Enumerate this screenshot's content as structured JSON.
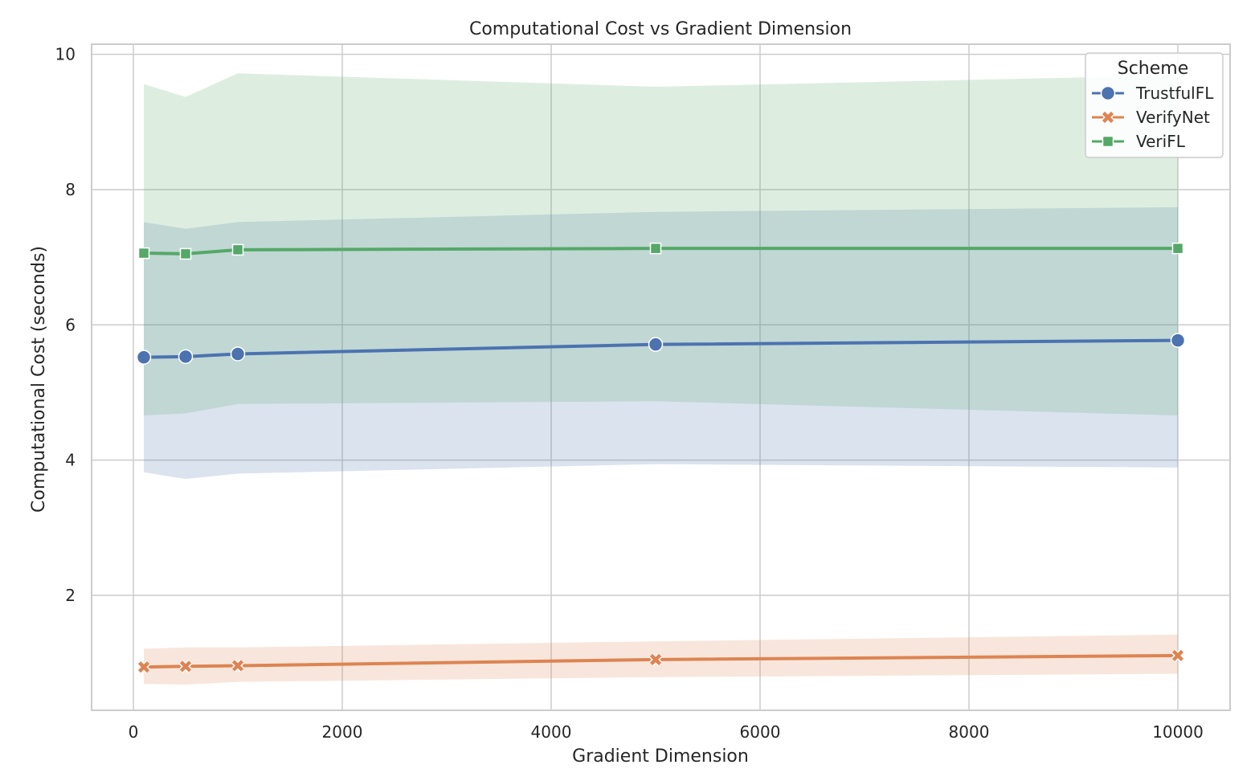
{
  "chart_data": {
    "type": "line",
    "title": "Computational Cost vs Gradient Dimension",
    "xlabel": "Gradient Dimension",
    "ylabel": "Computational Cost (seconds)",
    "xlim": [
      -400,
      10500
    ],
    "ylim": [
      0.3,
      10.15
    ],
    "xticks": [
      0,
      2000,
      4000,
      6000,
      8000,
      10000
    ],
    "yticks": [
      2,
      4,
      6,
      8,
      10
    ],
    "grid": true,
    "legend": {
      "title": "Scheme",
      "position": "top-right"
    },
    "x": [
      100,
      500,
      1000,
      5000,
      10000
    ],
    "series": [
      {
        "name": "TrustfulFL",
        "color": "#4c72b0",
        "marker": "circle",
        "values": [
          5.52,
          5.53,
          5.57,
          5.71,
          5.77
        ],
        "ci_lower": [
          3.82,
          3.72,
          3.8,
          3.94,
          3.89
        ],
        "ci_upper": [
          7.52,
          7.42,
          7.52,
          7.67,
          7.74
        ]
      },
      {
        "name": "VerifyNet",
        "color": "#dd8452",
        "marker": "x",
        "values": [
          0.94,
          0.95,
          0.96,
          1.05,
          1.11
        ],
        "ci_lower": [
          0.69,
          0.68,
          0.72,
          0.79,
          0.84
        ],
        "ci_upper": [
          1.21,
          1.23,
          1.23,
          1.32,
          1.42
        ]
      },
      {
        "name": "VeriFL",
        "color": "#55a868",
        "marker": "square",
        "values": [
          7.06,
          7.05,
          7.11,
          7.13,
          7.13
        ],
        "ci_lower": [
          4.66,
          4.69,
          4.83,
          4.87,
          4.66
        ],
        "ci_upper": [
          9.56,
          9.37,
          9.72,
          9.52,
          9.69
        ]
      }
    ]
  }
}
